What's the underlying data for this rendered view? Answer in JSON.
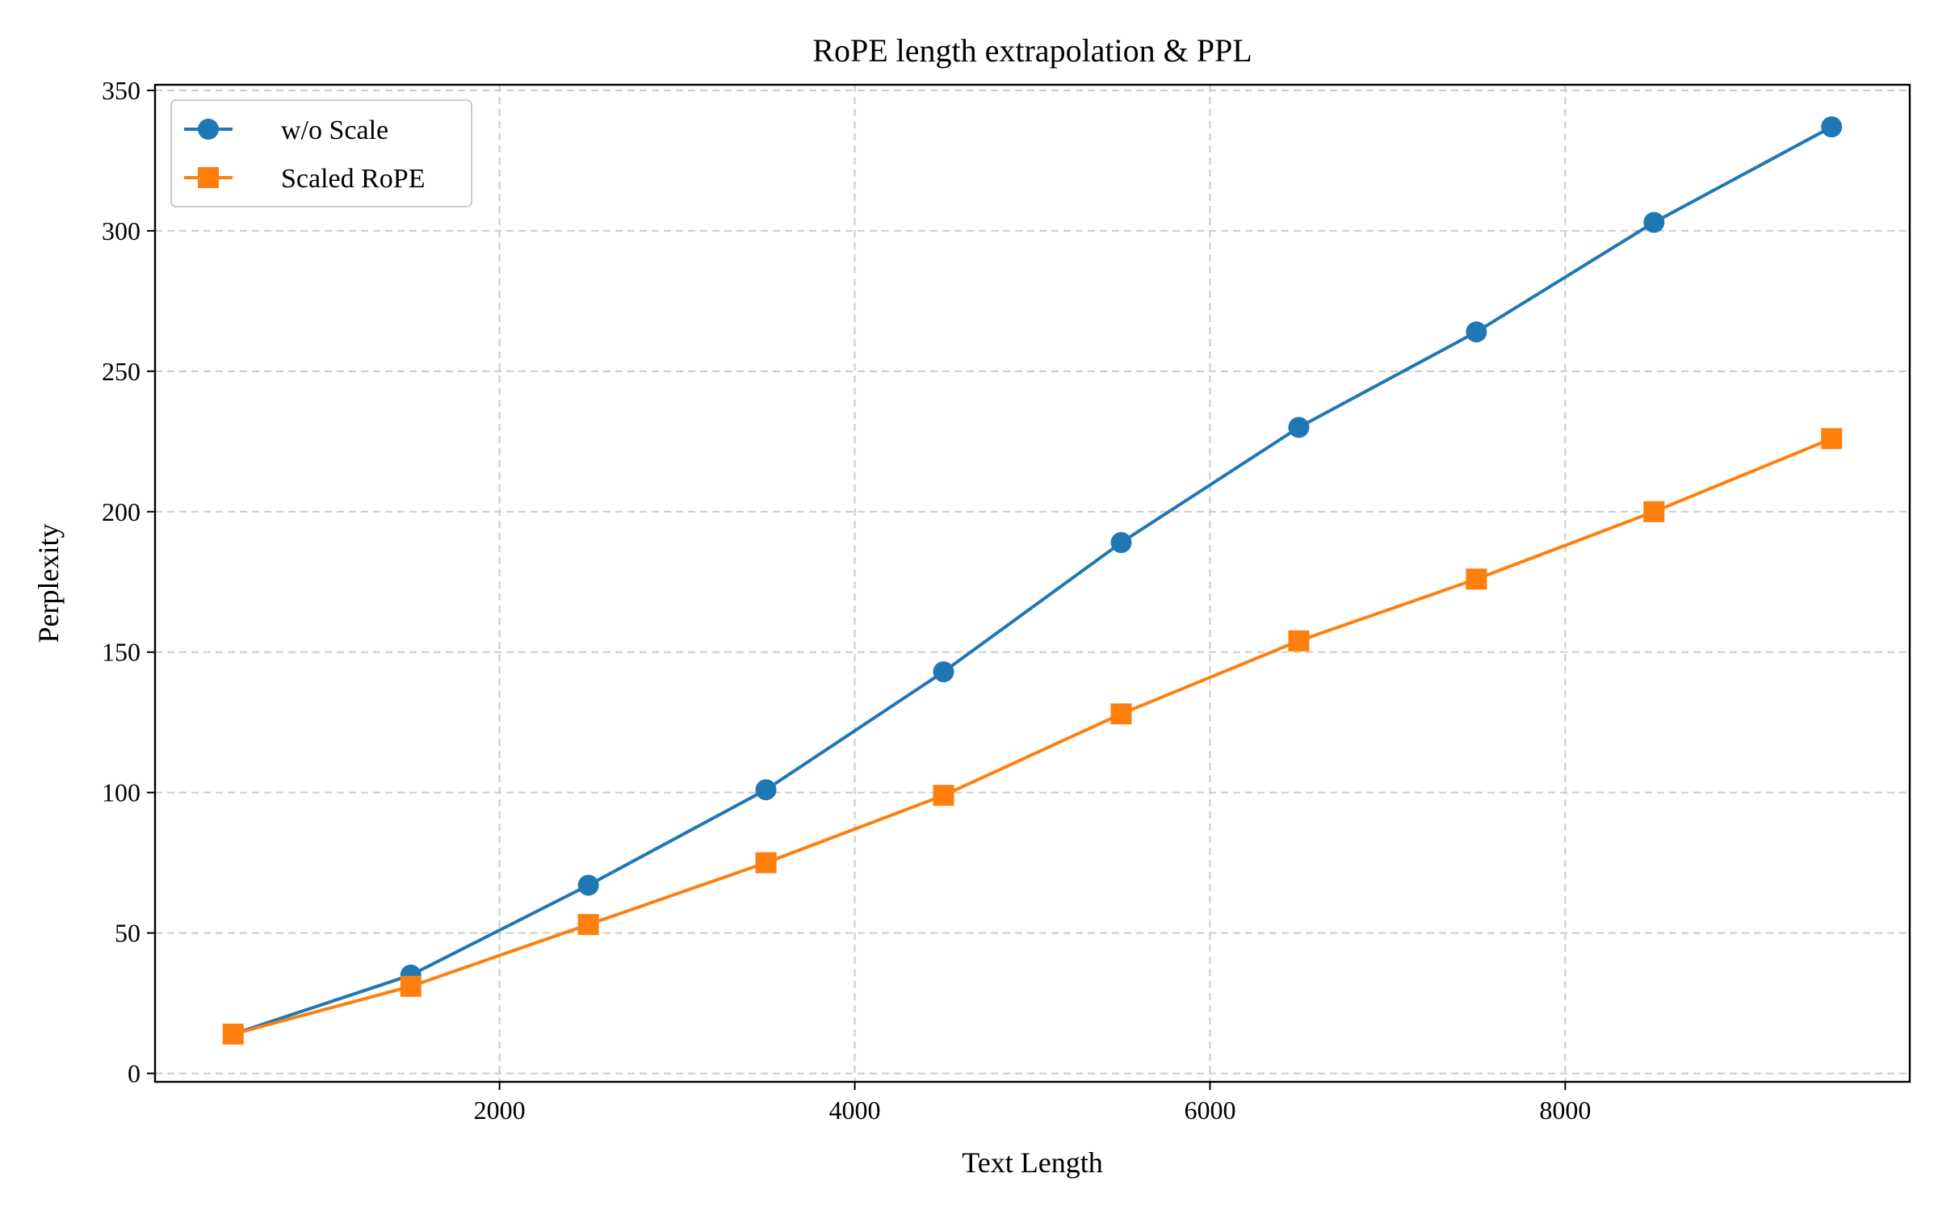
{
  "chart_data": {
    "type": "line",
    "title": "RoPE length extrapolation & PPL",
    "xlabel": "Text Length",
    "ylabel": "Perplexity",
    "x": [
      500,
      1500,
      2500,
      3500,
      4500,
      5500,
      6500,
      7500,
      8500,
      9500
    ],
    "xlim": [
      60,
      9940
    ],
    "ylim": [
      -3,
      352
    ],
    "xticks": [
      2000,
      4000,
      6000,
      8000
    ],
    "xtick_labels": [
      "2000",
      "4000",
      "6000",
      "8000"
    ],
    "yticks": [
      0,
      50,
      100,
      150,
      200,
      250,
      300,
      350
    ],
    "ytick_labels": [
      "0",
      "50",
      "100",
      "150",
      "200",
      "250",
      "300",
      "350"
    ],
    "grid": true,
    "legend_position": "top-left",
    "series": [
      {
        "name": "w/o Scale",
        "color": "#1f77b4",
        "marker": "circle",
        "values": [
          14,
          35,
          67,
          101,
          143,
          189,
          230,
          264,
          303,
          337
        ]
      },
      {
        "name": "Scaled RoPE",
        "color": "#ff7f0e",
        "marker": "square",
        "values": [
          14,
          31,
          53,
          75,
          99,
          128,
          154,
          176,
          200,
          226
        ]
      }
    ]
  }
}
